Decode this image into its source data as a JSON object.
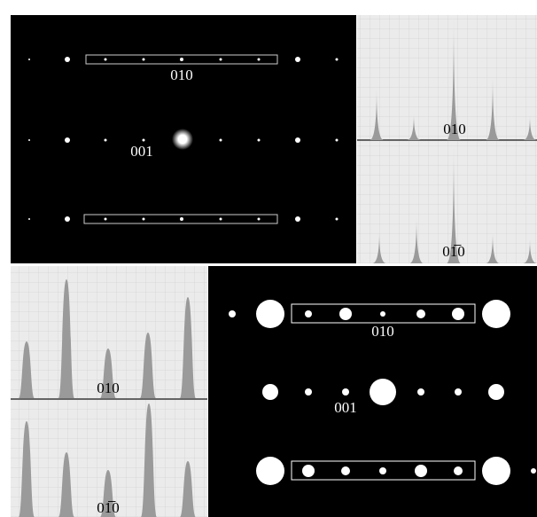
{
  "experimental_pattern": {
    "labels": [
      "010",
      "001"
    ]
  },
  "experimental_profiles": [
    {
      "label": "010"
    },
    {
      "label": "01̅0"
    }
  ],
  "simulated_profiles": [
    {
      "label": "010"
    },
    {
      "label": "01̅0"
    }
  ],
  "simulated_pattern": {
    "labels": [
      "010",
      "001"
    ]
  }
}
